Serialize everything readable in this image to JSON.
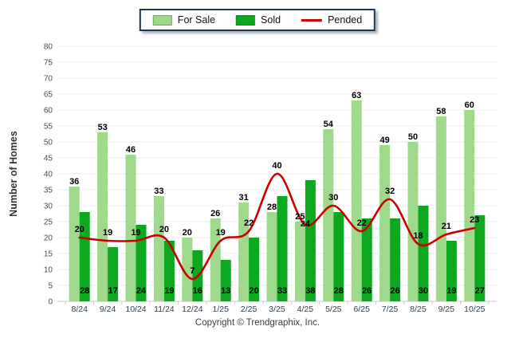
{
  "legend": {
    "items": [
      {
        "label": "For Sale",
        "color": "#9FD98C",
        "swatch": "rect"
      },
      {
        "label": "Sold",
        "color": "#0CA81F",
        "swatch": "rect"
      },
      {
        "label": "Pended",
        "color": "#CC0000",
        "swatch": "line"
      }
    ]
  },
  "y_axis_title": "Number of Homes",
  "footer": "Copyright © Trendgraphix, Inc.",
  "chart_data": {
    "type": "bar",
    "subtype": "grouped-bars-with-smooth-line-overlay",
    "title": "",
    "categories": [
      "8/24",
      "9/24",
      "10/24",
      "11/24",
      "12/24",
      "1/25",
      "2/25",
      "3/25",
      "4/25",
      "5/25",
      "6/25",
      "7/25",
      "8/25",
      "9/25",
      "10/25"
    ],
    "series": [
      {
        "name": "For Sale",
        "type": "bar",
        "color": "#9FD98C",
        "values": [
          36,
          53,
          46,
          33,
          20,
          26,
          31,
          28,
          25,
          54,
          63,
          49,
          50,
          58,
          60
        ]
      },
      {
        "name": "Sold",
        "type": "bar",
        "color": "#0CA81F",
        "values": [
          28,
          17,
          24,
          19,
          16,
          13,
          20,
          33,
          38,
          28,
          26,
          26,
          30,
          19,
          27
        ]
      },
      {
        "name": "Pended",
        "type": "line",
        "color": "#CC0000",
        "values": [
          20,
          19,
          19,
          20,
          7,
          19,
          22,
          40,
          24,
          30,
          22,
          32,
          18,
          21,
          23
        ]
      }
    ],
    "xlabel": "",
    "ylabel": "Number of Homes",
    "ylim": [
      0,
      80
    ],
    "y_ticks": [
      0,
      5,
      10,
      15,
      20,
      25,
      30,
      35,
      40,
      45,
      50,
      55,
      60,
      65,
      70,
      75,
      80
    ],
    "grid": true,
    "grid_color": "#ECECEC",
    "legend_position": "top-center",
    "value_labels": true
  }
}
